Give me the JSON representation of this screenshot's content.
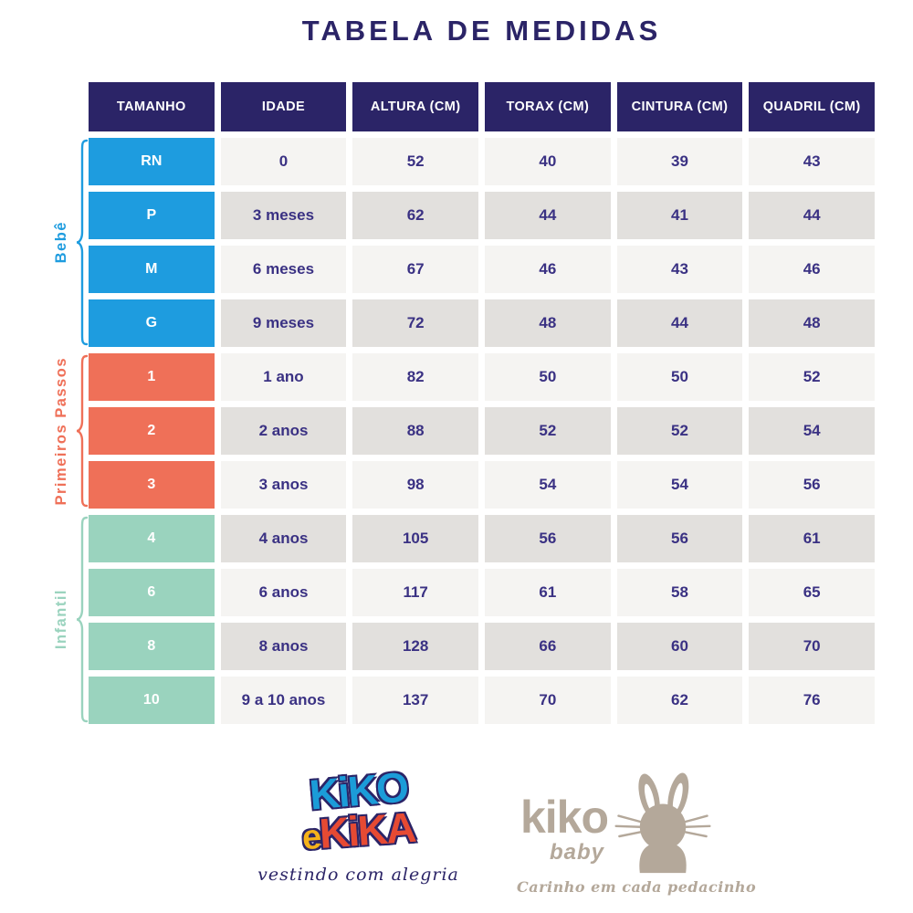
{
  "title": "TABELA DE MEDIDAS",
  "colors": {
    "navy": "#2B2467",
    "text": "#3A3183",
    "blue": "#1E9CDF",
    "coral": "#EF7058",
    "mint": "#9AD3BE",
    "row_light": "#F5F4F2",
    "row_dark": "#E2E0DD",
    "taupe": "#B4A89A",
    "logo_blue": "#1B9CD8",
    "logo_red": "#E64A33",
    "logo_yellow": "#F5B21A"
  },
  "chart_data": {
    "type": "table",
    "title": "TABELA DE MEDIDAS",
    "columns": [
      "TAMANHO",
      "IDADE",
      "ALTURA (CM)",
      "TORAX (CM)",
      "CINTURA (CM)",
      "QUADRIL (CM)"
    ],
    "groups": [
      {
        "label": "Bebê",
        "color": "#1E9CDF",
        "rows": [
          [
            "RN",
            "0",
            "52",
            "40",
            "39",
            "43"
          ],
          [
            "P",
            "3 meses",
            "62",
            "44",
            "41",
            "44"
          ],
          [
            "M",
            "6 meses",
            "67",
            "46",
            "43",
            "46"
          ],
          [
            "G",
            "9 meses",
            "72",
            "48",
            "44",
            "48"
          ]
        ]
      },
      {
        "label": "Primeiros Passos",
        "color": "#EF7058",
        "rows": [
          [
            "1",
            "1 ano",
            "82",
            "50",
            "50",
            "52"
          ],
          [
            "2",
            "2 anos",
            "88",
            "52",
            "52",
            "54"
          ],
          [
            "3",
            "3 anos",
            "98",
            "54",
            "54",
            "56"
          ]
        ]
      },
      {
        "label": "Infantil",
        "color": "#9AD3BE",
        "rows": [
          [
            "4",
            "4 anos",
            "105",
            "56",
            "56",
            "61"
          ],
          [
            "6",
            "6 anos",
            "117",
            "61",
            "58",
            "65"
          ],
          [
            "8",
            "8 anos",
            "128",
            "66",
            "60",
            "70"
          ],
          [
            "10",
            "9 a 10 anos",
            "137",
            "70",
            "62",
            "76"
          ]
        ]
      }
    ]
  },
  "footer": {
    "brand1": {
      "line1": "KiKO",
      "e": "e",
      "line2": "KiKA",
      "tagline": "vestindo com alegria"
    },
    "brand2": {
      "name": "kiko",
      "sub": "baby",
      "tagline": "Carinho em cada pedacinho"
    }
  }
}
